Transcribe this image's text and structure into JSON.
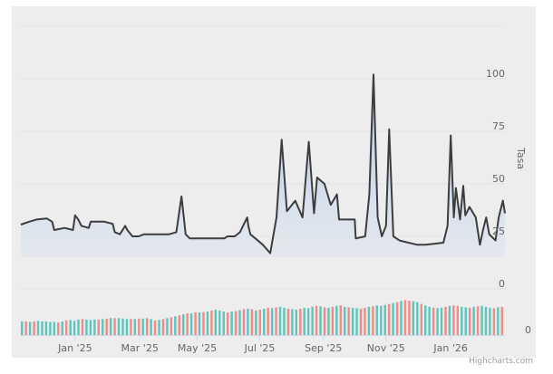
{
  "chart_data": {
    "type": "line",
    "title": "",
    "x_start_date": "2024-11-29",
    "x_unit": "days since x_start_date",
    "ylabel": "Tasa",
    "ylim": [
      0,
      125
    ],
    "yticks": [
      "0",
      "25",
      "50",
      "75",
      "100"
    ],
    "volume_axis_tick": "0",
    "xticks": [
      {
        "label": "Jan '25",
        "day": 52
      },
      {
        "label": "Mar '25",
        "day": 114
      },
      {
        "label": "May '25",
        "day": 169
      },
      {
        "label": "Jul '25",
        "day": 229
      },
      {
        "label": "Sep '25",
        "day": 290
      },
      {
        "label": "Nov '25",
        "day": 350
      },
      {
        "label": "Jan '26",
        "day": 412
      }
    ],
    "series": [
      {
        "name": "Tasa",
        "color": "#3d3d3f",
        "points": [
          [
            0,
            30.6
          ],
          [
            8,
            32
          ],
          [
            15,
            33
          ],
          [
            25,
            33.5
          ],
          [
            30,
            32
          ],
          [
            32,
            28
          ],
          [
            42,
            29
          ],
          [
            50,
            28
          ],
          [
            52,
            35
          ],
          [
            55,
            33
          ],
          [
            58,
            30
          ],
          [
            65,
            29
          ],
          [
            67,
            32
          ],
          [
            75,
            32
          ],
          [
            80,
            32
          ],
          [
            88,
            31
          ],
          [
            90,
            27
          ],
          [
            95,
            26
          ],
          [
            100,
            30
          ],
          [
            102,
            28
          ],
          [
            107,
            25
          ],
          [
            113,
            25
          ],
          [
            118,
            26
          ],
          [
            125,
            26
          ],
          [
            135,
            26
          ],
          [
            142,
            26
          ],
          [
            149,
            27
          ],
          [
            154,
            44
          ],
          [
            158,
            26
          ],
          [
            162,
            24
          ],
          [
            167,
            24
          ],
          [
            180,
            24
          ],
          [
            195,
            24
          ],
          [
            198,
            25
          ],
          [
            205,
            25
          ],
          [
            210,
            27
          ],
          [
            217,
            34
          ],
          [
            218,
            30
          ],
          [
            220,
            26
          ],
          [
            232,
            21
          ],
          [
            239,
            17
          ],
          [
            245,
            34
          ],
          [
            250,
            71
          ],
          [
            255,
            37
          ],
          [
            263,
            42
          ],
          [
            270,
            34
          ],
          [
            276,
            70
          ],
          [
            281,
            36
          ],
          [
            284,
            53
          ],
          [
            291,
            50
          ],
          [
            297,
            40
          ],
          [
            303,
            45
          ],
          [
            305,
            33
          ],
          [
            320,
            33
          ],
          [
            321,
            24
          ],
          [
            330,
            25
          ],
          [
            334,
            45
          ],
          [
            338,
            102
          ],
          [
            342,
            34
          ],
          [
            346,
            25
          ],
          [
            350,
            30
          ],
          [
            353,
            76
          ],
          [
            357,
            25
          ],
          [
            363,
            23
          ],
          [
            380,
            21
          ],
          [
            388,
            21
          ],
          [
            405,
            22
          ],
          [
            409,
            30
          ],
          [
            412,
            73
          ],
          [
            415,
            34
          ],
          [
            417,
            48
          ],
          [
            421,
            33
          ],
          [
            424,
            49
          ],
          [
            426,
            35
          ],
          [
            430,
            39
          ],
          [
            436,
            34
          ],
          [
            440,
            21
          ],
          [
            443,
            28
          ],
          [
            446,
            34
          ],
          [
            449,
            26
          ],
          [
            455,
            23
          ],
          [
            458,
            34
          ],
          [
            462,
            42
          ],
          [
            464,
            36
          ]
        ]
      }
    ],
    "volume": {
      "up_color": "#5cc6bc",
      "down_color": "#f28b88",
      "values": [
        29,
        29,
        28,
        29,
        30,
        29,
        29,
        28,
        28,
        27,
        29,
        31,
        32,
        30,
        33,
        34,
        33,
        32,
        33,
        33,
        34,
        35,
        36,
        36,
        36,
        35,
        34,
        34,
        34,
        35,
        35,
        36,
        34,
        31,
        32,
        34,
        36,
        38,
        40,
        42,
        44,
        46,
        46,
        48,
        48,
        49,
        50,
        52,
        54,
        52,
        50,
        48,
        50,
        51,
        53,
        55,
        56,
        55,
        52,
        54,
        56,
        58,
        57,
        59,
        60,
        58,
        56,
        55,
        54,
        56,
        58,
        57,
        60,
        62,
        61,
        59,
        58,
        60,
        62,
        63,
        60,
        59,
        58,
        57,
        56,
        58,
        60,
        61,
        63,
        62,
        64,
        66,
        68,
        70,
        72,
        74,
        73,
        72,
        70,
        66,
        63,
        60,
        58,
        57,
        58,
        60,
        62,
        63,
        62,
        60,
        59,
        58,
        60,
        61,
        62,
        60,
        58,
        57,
        59,
        60
      ]
    }
  }
}
